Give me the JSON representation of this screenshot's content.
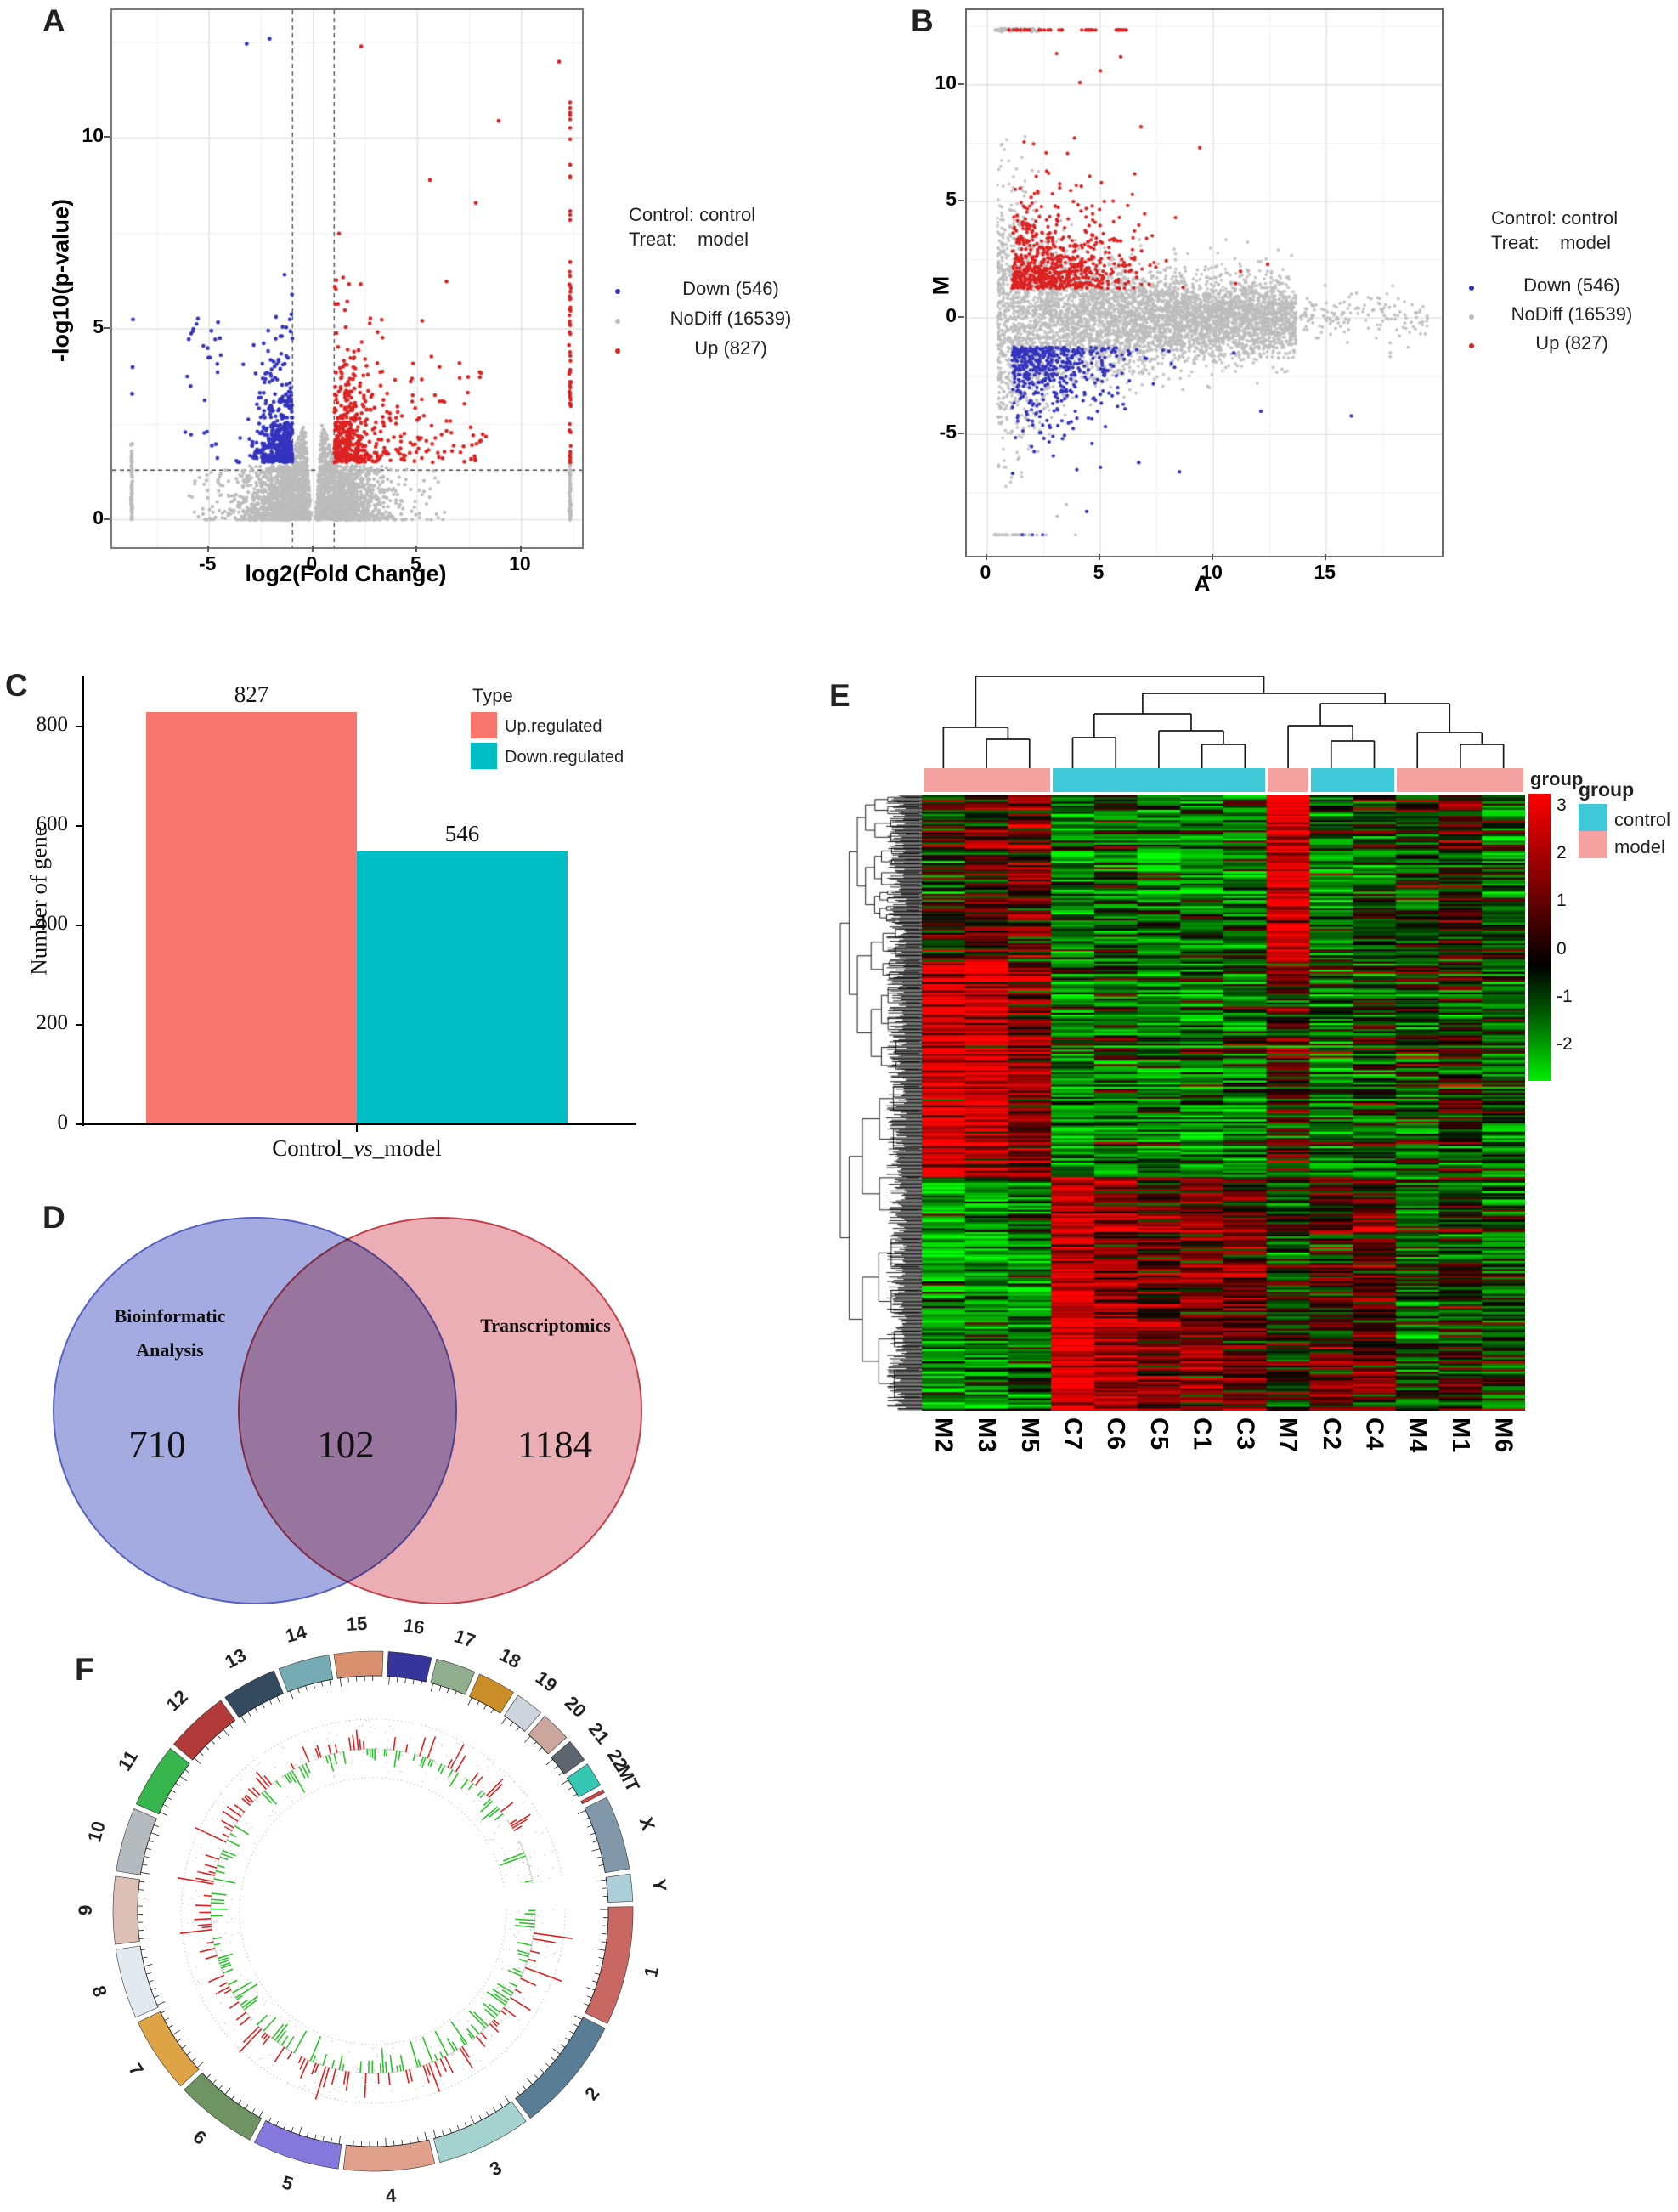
{
  "panels": {
    "A": {
      "label": "A",
      "xlabel": "log2(Fold Change)",
      "ylabel": "-log10(p-value)",
      "legend": {
        "line1": "Control: control",
        "line2": "Treat:    model",
        "down": "Down (546)",
        "nodiff": "NoDiff (16539)",
        "up": "Up (827)"
      }
    },
    "B": {
      "label": "B",
      "xlabel": "A",
      "ylabel": "M",
      "legend": {
        "line1": "Control: control",
        "line2": "Treat:    model",
        "down": "Down (546)",
        "nodiff": "NoDiff (16539)",
        "up": "Up (827)"
      }
    },
    "C": {
      "label": "C",
      "ylabel": "Number of gene",
      "xlabel_pre": "Control_",
      "xlabel_vs": "vs",
      "xlabel_post": "_model",
      "legend_title": "Type",
      "legend_up": "Up.regulated",
      "legend_down": "Down.regulated",
      "bar_up_value": "827",
      "bar_down_value": "546"
    },
    "D": {
      "label": "D",
      "left_title_line1": "Bioinformatic",
      "left_title_line2": "Analysis",
      "right_title": "Transcriptomics",
      "left_value": "710",
      "center_value": "102",
      "right_value": "1184"
    },
    "E": {
      "label": "E",
      "strip_label": "group",
      "legend_title": "group",
      "legend_control": "control",
      "legend_model": "model"
    },
    "F": {
      "label": "F"
    }
  },
  "chart_data": [
    {
      "panel": "A",
      "type": "scatter",
      "subtype": "volcano",
      "xlabel": "log2(Fold Change)",
      "ylabel": "-log10(p-value)",
      "x_ticks": [
        -5,
        0,
        5,
        10
      ],
      "y_ticks": [
        0,
        5,
        10
      ],
      "x_range": [
        -9.66,
        12.9
      ],
      "y_range": [
        -0.72,
        13.35
      ],
      "fold_change_threshold_lines": [
        -1,
        1
      ],
      "pvalue_threshold_line": 1.3,
      "series": [
        {
          "name": "Down",
          "count": 546,
          "color": "#3434bf"
        },
        {
          "name": "NoDiff",
          "count": 16539,
          "color": "#bcbcbc"
        },
        {
          "name": "Up",
          "count": 827,
          "color": "#dd2222"
        }
      ],
      "comparison": {
        "control": "control",
        "treat": "model"
      }
    },
    {
      "panel": "B",
      "type": "scatter",
      "subtype": "MA-plot",
      "xlabel": "A",
      "ylabel": "M",
      "x_ticks": [
        0,
        5,
        10,
        15
      ],
      "y_ticks": [
        10,
        5,
        0,
        -5
      ],
      "x_range": [
        -0.9,
        20.1
      ],
      "y_range": [
        -10.2,
        13.2
      ],
      "series": [
        {
          "name": "Down",
          "count": 546,
          "color": "#3434bf"
        },
        {
          "name": "NoDiff",
          "count": 16539,
          "color": "#bcbcbc"
        },
        {
          "name": "Up",
          "count": 827,
          "color": "#dd2222"
        }
      ],
      "comparison": {
        "control": "control",
        "treat": "model"
      }
    },
    {
      "panel": "C",
      "type": "bar",
      "title": "",
      "categories": [
        "Control_vs_model"
      ],
      "series": [
        {
          "name": "Up.regulated",
          "values": [
            827
          ],
          "color": "#f8766d"
        },
        {
          "name": "Down.regulated",
          "values": [
            546
          ],
          "color": "#00bfc4"
        }
      ],
      "ylabel": "Number of gene",
      "xlabel": "Control_vs_model",
      "y_ticks": [
        0,
        200,
        400,
        600,
        800
      ],
      "ylim": [
        0,
        880
      ],
      "legend_title": "Type",
      "grid": false
    },
    {
      "panel": "D",
      "type": "venn",
      "sets": [
        {
          "label": "Bioinformatic Analysis",
          "unique": 710,
          "color": "#7b86d2"
        },
        {
          "label": "Transcriptomics",
          "unique": 1184,
          "color": "#dd8e96"
        }
      ],
      "intersection": 102
    },
    {
      "panel": "E",
      "type": "heatmap",
      "columns": [
        "M2",
        "M3",
        "M5",
        "C7",
        "C6",
        "C5",
        "C1",
        "C3",
        "M7",
        "C2",
        "C4",
        "M4",
        "M1",
        "M6"
      ],
      "column_groups": [
        "model",
        "model",
        "model",
        "control",
        "control",
        "control",
        "control",
        "control",
        "model",
        "control",
        "control",
        "model",
        "model",
        "model"
      ],
      "group_colors": {
        "control": "#3fc8d7",
        "model": "#f4a29f"
      },
      "strip_blocks": [
        {
          "group": "model",
          "cols": 3
        },
        {
          "group": "control",
          "cols": 5
        },
        {
          "group": "model",
          "cols": 1
        },
        {
          "group": "control",
          "cols": 2
        },
        {
          "group": "model",
          "cols": 3
        }
      ],
      "scale_ticks": [
        3,
        2,
        1,
        0,
        -1,
        -2
      ],
      "scale_range": [
        3,
        -2
      ],
      "legend_title": "group",
      "row_band_fractions": [
        0.27,
        0.62
      ],
      "band_means": {
        "top": [
          0.2,
          0.5,
          0.9,
          -1.0,
          -0.7,
          -1.1,
          -1.0,
          -0.9,
          2.4,
          -0.9,
          -0.4,
          -0.2,
          0.1,
          -0.7
        ],
        "mid": [
          2.4,
          2.1,
          1.1,
          -1.2,
          -0.9,
          -1.0,
          -1.1,
          -1.0,
          0.2,
          -0.8,
          -0.5,
          -0.5,
          -0.2,
          -0.8
        ],
        "bottom": [
          -1.7,
          -1.4,
          -1.2,
          2.2,
          1.4,
          0.9,
          0.9,
          0.8,
          -0.3,
          0.5,
          0.8,
          -0.6,
          -0.3,
          -0.7
        ]
      }
    },
    {
      "panel": "F",
      "type": "circos",
      "chromosomes": [
        {
          "name": "1",
          "size": 249,
          "color": "#c96762"
        },
        {
          "name": "2",
          "size": 243,
          "color": "#5a7d96"
        },
        {
          "name": "3",
          "size": 198,
          "color": "#a3d2cf"
        },
        {
          "name": "4",
          "size": 190,
          "color": "#e0a18c"
        },
        {
          "name": "5",
          "size": 182,
          "color": "#8478dd"
        },
        {
          "name": "6",
          "size": 171,
          "color": "#6f9463"
        },
        {
          "name": "7",
          "size": 159,
          "color": "#dda345"
        },
        {
          "name": "8",
          "size": 146,
          "color": "#e2e9ef"
        },
        {
          "name": "9",
          "size": 141,
          "color": "#dcc0b6"
        },
        {
          "name": "10",
          "size": 134,
          "color": "#b5babf"
        },
        {
          "name": "11",
          "size": 135,
          "color": "#35b54b"
        },
        {
          "name": "12",
          "size": 133,
          "color": "#b23b3a"
        },
        {
          "name": "13",
          "size": 115,
          "color": "#344a5e"
        },
        {
          "name": "14",
          "size": 107,
          "color": "#77abb3"
        },
        {
          "name": "15",
          "size": 102,
          "color": "#d9906f"
        },
        {
          "name": "16",
          "size": 90,
          "color": "#35359b"
        },
        {
          "name": "17",
          "size": 83,
          "color": "#90ad8d"
        },
        {
          "name": "18",
          "size": 80,
          "color": "#cb8d27"
        },
        {
          "name": "19",
          "size": 59,
          "color": "#ccd5dd"
        },
        {
          "name": "20",
          "size": 63,
          "color": "#caa69d"
        },
        {
          "name": "21",
          "size": 48,
          "color": "#5d656f"
        },
        {
          "name": "22",
          "size": 51,
          "color": "#35c7b4"
        },
        {
          "name": "MT",
          "size": 7,
          "color": "#cf4545"
        },
        {
          "name": "X",
          "size": 155,
          "color": "#8098a9"
        },
        {
          "name": "Y",
          "size": 57,
          "color": "#accfd9"
        }
      ],
      "track": {
        "up_color": "#e01f1f",
        "down_color": "#28c428",
        "baseline_color": "#d4d4d4",
        "no_data": [
          "Y",
          "MT"
        ],
        "sparse": [
          "X"
        ]
      }
    }
  ]
}
